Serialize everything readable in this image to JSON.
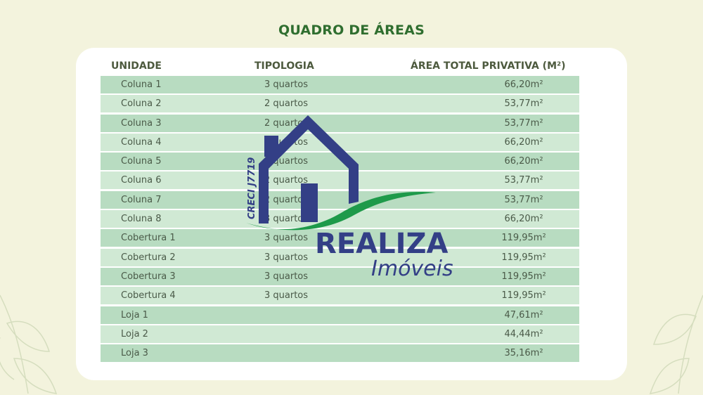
{
  "title": "QUADRO DE ÁREAS",
  "headers": {
    "unidade": "UNIDADE",
    "tipologia": "TIPOLOGIA",
    "area": "ÁREA TOTAL PRIVATIVA (M²)"
  },
  "rows": [
    {
      "unidade": "Coluna 1",
      "tipologia": "3 quartos",
      "area": "66,20m²"
    },
    {
      "unidade": "Coluna 2",
      "tipologia": "2 quartos",
      "area": "53,77m²"
    },
    {
      "unidade": "Coluna 3",
      "tipologia": "2 quartos",
      "area": "53,77m²"
    },
    {
      "unidade": "Coluna 4",
      "tipologia": "3 quartos",
      "area": "66,20m²"
    },
    {
      "unidade": "Coluna 5",
      "tipologia": "3 quartos",
      "area": "66,20m²"
    },
    {
      "unidade": "Coluna 6",
      "tipologia": "2 quartos",
      "area": "53,77m²"
    },
    {
      "unidade": "Coluna 7",
      "tipologia": "2 quartos",
      "area": "53,77m²"
    },
    {
      "unidade": "Coluna 8",
      "tipologia": "3 quartos",
      "area": "66,20m²"
    },
    {
      "unidade": "Cobertura 1",
      "tipologia": "3 quartos",
      "area": "119,95m²"
    },
    {
      "unidade": "Cobertura 2",
      "tipologia": "3 quartos",
      "area": "119,95m²"
    },
    {
      "unidade": "Cobertura 3",
      "tipologia": "3 quartos",
      "area": "119,95m²"
    },
    {
      "unidade": "Cobertura 4",
      "tipologia": "3 quartos",
      "area": "119,95m²"
    },
    {
      "unidade": "Loja 1",
      "tipologia": "",
      "area": "47,61m²"
    },
    {
      "unidade": "Loja 2",
      "tipologia": "",
      "area": "44,44m²"
    },
    {
      "unidade": "Loja 3",
      "tipologia": "",
      "area": "35,16m²"
    }
  ],
  "watermark": {
    "brand": "Realiza",
    "subtitle": "Imóveis",
    "creci": "CRECI J7719"
  },
  "colors": {
    "title": "#2f6e2f",
    "row_dark": "#b8dcc1",
    "row_light": "#d0e9d4",
    "logo_blue": "#333f86",
    "logo_green": "#1e9a4a"
  }
}
